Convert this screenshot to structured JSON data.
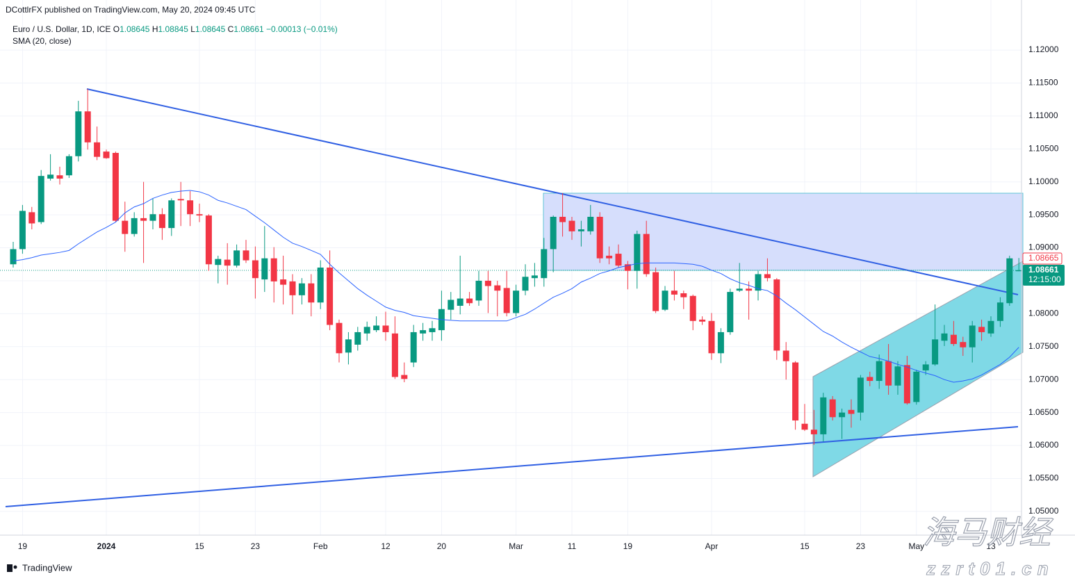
{
  "header": {
    "publisher": "DCottlrFX published on TradingView.com, May 20, 2024 09:45 UTC"
  },
  "chart_data": {
    "type": "candlestick",
    "legend": {
      "symbol": "Euro / U.S. Dollar, 1D, ICE",
      "ohlc": [
        {
          "key": "O",
          "value": "1.08645"
        },
        {
          "key": "H",
          "value": "1.08845"
        },
        {
          "key": "L",
          "value": "1.08645"
        },
        {
          "key": "C",
          "value": "1.08661"
        }
      ],
      "change": "−0.00013 (−0.01%)"
    },
    "categories": [
      null,
      "19",
      null,
      null,
      null,
      null,
      null,
      null,
      null,
      null,
      "2024",
      null,
      null,
      null,
      null,
      null,
      null,
      null,
      null,
      null,
      "15",
      null,
      null,
      null,
      null,
      null,
      "23",
      null,
      null,
      null,
      null,
      null,
      null,
      "Feb",
      null,
      null,
      null,
      null,
      null,
      null,
      "12",
      null,
      null,
      null,
      null,
      null,
      "20",
      null,
      null,
      null,
      null,
      null,
      null,
      null,
      "Mar",
      null,
      null,
      null,
      null,
      null,
      "11",
      null,
      null,
      null,
      null,
      null,
      "19",
      null,
      null,
      null,
      null,
      null,
      null,
      null,
      null,
      "Apr",
      null,
      null,
      null,
      null,
      null,
      null,
      null,
      null,
      null,
      "15",
      null,
      null,
      null,
      null,
      null,
      "23",
      null,
      null,
      null,
      null,
      null,
      "May",
      null,
      null,
      null,
      null,
      null,
      null,
      null,
      "13",
      null,
      null,
      null
    ],
    "open": [
      1.0875,
      1.0898,
      1.0954,
      1.0939,
      1.1005,
      1.101,
      1.101,
      1.1039,
      1.1107,
      1.106,
      1.1046,
      1.1044,
      1.0941,
      1.0921,
      1.0945,
      1.0941,
      1.0951,
      1.093,
      1.0974,
      1.0972,
      1.0951,
      1.0949,
      1.0874,
      1.0882,
      1.0873,
      1.0896,
      1.0881,
      1.0852,
      1.0884,
      1.0852,
      1.0849,
      1.0828,
      1.0846,
      1.0817,
      1.087,
      1.0786,
      1.0741,
      1.0753,
      1.077,
      1.0775,
      1.0782,
      1.077,
      1.0707,
      1.0726,
      1.077,
      1.0772,
      1.0775,
      1.0806,
      1.0812,
      1.0823,
      1.082,
      1.085,
      1.0843,
      1.0839,
      1.0801,
      1.0835,
      1.0854,
      1.0854,
      1.0898,
      1.0947,
      1.0941,
      1.0925,
      1.0925,
      1.0947,
      1.0888,
      1.0891,
      1.0875,
      1.0865,
      1.0921,
      1.0863,
      1.0806,
      1.0835,
      1.0831,
      1.0827,
      1.0791,
      1.0789,
      1.074,
      1.0772,
      1.0835,
      1.0838,
      1.0835,
      1.086,
      1.0852,
      1.0744,
      1.0726,
      1.0633,
      1.0624,
      1.0617,
      1.067,
      1.0643,
      1.0654,
      1.065,
      1.0704,
      1.0698,
      1.0728,
      1.0691,
      1.0722,
      1.0666,
      1.0714,
      1.0723,
      1.0759,
      1.0768,
      1.0757,
      1.0749,
      1.078,
      1.077,
      1.0789,
      1.0816,
      1.08645
    ],
    "high": [
      1.0909,
      1.0965,
      1.0962,
      1.1018,
      1.1042,
      1.1023,
      1.1042,
      1.1123,
      1.1141,
      1.1084,
      1.1049,
      1.1046,
      1.097,
      1.0954,
      1.1,
      1.0975,
      1.096,
      1.0975,
      1.1,
      1.0986,
      1.0967,
      1.0951,
      1.0888,
      1.0907,
      1.0905,
      1.0912,
      1.0902,
      1.0933,
      1.0901,
      1.0888,
      1.086,
      1.0854,
      1.086,
      1.0881,
      1.0896,
      1.0791,
      1.0772,
      1.078,
      1.0788,
      1.0796,
      1.0803,
      1.0796,
      1.0726,
      1.0783,
      1.0786,
      1.0789,
      1.0835,
      1.0833,
      1.0888,
      1.0833,
      1.0865,
      1.0865,
      1.085,
      1.0865,
      1.0844,
      1.0875,
      1.0877,
      1.0915,
      1.0949,
      1.0983,
      1.0947,
      1.0941,
      1.0965,
      1.0954,
      1.0902,
      1.0905,
      1.088,
      1.0926,
      1.0941,
      1.087,
      1.0842,
      1.0865,
      1.0835,
      1.0829,
      1.0796,
      1.0801,
      1.0778,
      1.0838,
      1.0877,
      1.0849,
      1.0865,
      1.0884,
      1.0854,
      1.0757,
      1.0728,
      1.0663,
      1.0654,
      1.068,
      1.0675,
      1.0656,
      1.067,
      1.0707,
      1.0712,
      1.0738,
      1.0754,
      1.0728,
      1.0736,
      1.0715,
      1.0728,
      1.0814,
      1.0783,
      1.0789,
      1.0765,
      1.0789,
      1.0791,
      1.0796,
      1.0825,
      1.0888,
      1.08845
    ],
    "low": [
      1.087,
      1.0891,
      1.0928,
      1.0936,
      1.1002,
      1.0996,
      1.1006,
      1.1031,
      1.1049,
      1.1033,
      1.1035,
      1.0939,
      1.0894,
      1.0917,
      1.0877,
      1.0928,
      1.0912,
      1.0918,
      1.0933,
      1.0933,
      1.0939,
      1.0865,
      1.0846,
      1.0844,
      1.087,
      1.0877,
      1.0823,
      1.0833,
      1.0817,
      1.0814,
      1.0799,
      1.0814,
      1.0796,
      1.0807,
      1.0775,
      1.0726,
      1.0723,
      1.0744,
      1.0759,
      1.0772,
      1.0759,
      1.0701,
      1.0696,
      1.0719,
      1.0759,
      1.0759,
      1.0759,
      1.0791,
      1.0799,
      1.0812,
      1.0812,
      1.0801,
      1.0796,
      1.0796,
      1.0796,
      1.0828,
      1.0841,
      1.0841,
      1.0863,
      1.0917,
      1.0912,
      1.0902,
      1.092,
      1.0877,
      1.0875,
      1.087,
      1.0837,
      1.0838,
      1.0856,
      1.0801,
      1.0804,
      1.082,
      1.0807,
      1.0775,
      1.0783,
      1.073,
      1.0725,
      1.0768,
      1.0833,
      1.0791,
      1.082,
      1.0849,
      1.073,
      1.07,
      1.0624,
      1.0622,
      1.0601,
      1.0606,
      1.0638,
      1.061,
      1.0627,
      1.0638,
      1.069,
      1.0686,
      1.0677,
      1.0677,
      1.0662,
      1.0662,
      1.0707,
      1.0721,
      1.0751,
      1.0751,
      1.0736,
      1.0726,
      1.0759,
      1.0765,
      1.078,
      1.0812,
      1.08645
    ],
    "close": [
      1.0898,
      1.0956,
      1.0937,
      1.1009,
      1.1011,
      1.1005,
      1.1039,
      1.1107,
      1.106,
      1.1038,
      1.1036,
      1.0941,
      1.0921,
      1.0945,
      1.0941,
      1.0951,
      1.093,
      1.0972,
      1.0972,
      1.0951,
      1.0949,
      1.0875,
      1.0883,
      1.0873,
      1.0896,
      1.0881,
      1.0854,
      1.0884,
      1.0849,
      1.0844,
      1.0828,
      1.0846,
      1.0817,
      1.087,
      1.0783,
      1.074,
      1.0761,
      1.0772,
      1.078,
      1.0782,
      1.0772,
      1.0704,
      1.0701,
      1.0772,
      1.0775,
      1.0778,
      1.0807,
      1.0821,
      1.0823,
      1.0816,
      1.085,
      1.0842,
      1.0835,
      1.0801,
      1.0835,
      1.0856,
      1.0858,
      1.0898,
      1.0947,
      1.0939,
      1.0925,
      1.0928,
      1.0947,
      1.0884,
      1.0884,
      1.0873,
      1.0865,
      1.0921,
      1.086,
      1.0804,
      1.0835,
      1.0829,
      1.0825,
      1.0789,
      1.0788,
      1.074,
      1.0772,
      1.0833,
      1.0838,
      1.0835,
      1.086,
      1.0854,
      1.0744,
      1.0728,
      1.0638,
      1.0624,
      1.0617,
      1.0673,
      1.0643,
      1.065,
      1.0648,
      1.0703,
      1.0698,
      1.0728,
      1.0691,
      1.072,
      1.0664,
      1.0712,
      1.0723,
      1.0761,
      1.077,
      1.0754,
      1.0749,
      1.0782,
      1.0772,
      1.0789,
      1.0817,
      1.0884,
      1.08661
    ],
    "up_color": "#089981",
    "down_color": "#f23645",
    "series": [
      {
        "name": "SMA (20, close)",
        "color": "#2962ff",
        "values": [
          1.088,
          1.0882,
          1.0885,
          1.0889,
          1.0891,
          1.0893,
          1.0896,
          1.0906,
          1.0915,
          1.0924,
          1.0931,
          1.0939,
          1.0953,
          1.0962,
          1.0967,
          1.0975,
          1.098,
          1.0984,
          1.0986,
          1.0987,
          1.0985,
          1.098,
          1.0972,
          1.0968,
          1.0963,
          1.0958,
          1.0948,
          1.0938,
          1.0927,
          1.0916,
          1.0907,
          1.0902,
          1.0896,
          1.089,
          1.0875,
          1.0862,
          1.085,
          1.0838,
          1.0828,
          1.0819,
          1.081,
          1.0805,
          1.0802,
          1.0797,
          1.0795,
          1.0793,
          1.0791,
          1.079,
          1.0789,
          1.0789,
          1.0789,
          1.0789,
          1.0789,
          1.0789,
          1.0794,
          1.0799,
          1.0807,
          1.0816,
          1.0825,
          1.0831,
          1.0838,
          1.0848,
          1.0854,
          1.0861,
          1.0865,
          1.087,
          1.0873,
          1.0876,
          1.0877,
          1.0877,
          1.0877,
          1.0877,
          1.0876,
          1.0875,
          1.0872,
          1.0866,
          1.0861,
          1.0853,
          1.0847,
          1.0843,
          1.0838,
          1.0835,
          1.0827,
          1.0816,
          1.0806,
          1.0795,
          1.0784,
          1.0773,
          1.0766,
          1.0757,
          1.0749,
          1.0742,
          1.0735,
          1.0732,
          1.0728,
          1.0723,
          1.0719,
          1.0714,
          1.071,
          1.0706,
          1.07,
          1.0696,
          1.0698,
          1.0701,
          1.0707,
          1.0715,
          1.0723,
          1.0734,
          1.0749
        ]
      }
    ],
    "ylim": [
      1.0464,
      1.1276
    ],
    "yticks": [
      {
        "value": 1.05,
        "label": "1.05000"
      },
      {
        "value": 1.055,
        "label": "1.05500"
      },
      {
        "value": 1.06,
        "label": "1.06000"
      },
      {
        "value": 1.065,
        "label": "1.06500"
      },
      {
        "value": 1.07,
        "label": "1.07000"
      },
      {
        "value": 1.075,
        "label": "1.07500"
      },
      {
        "value": 1.08,
        "label": "1.08000"
      },
      {
        "value": 1.085,
        "label": "1.08500"
      },
      {
        "value": 1.09,
        "label": "1.09000"
      },
      {
        "value": 1.095,
        "label": "1.09500"
      },
      {
        "value": 1.1,
        "label": "1.10000"
      },
      {
        "value": 1.105,
        "label": "1.10500"
      },
      {
        "value": 1.11,
        "label": "1.11000"
      },
      {
        "value": 1.115,
        "label": "1.11500"
      },
      {
        "value": 1.12,
        "label": "1.12000"
      }
    ],
    "grid": true,
    "price_tags": {
      "marker": "1.08665",
      "last": "1.08661",
      "countdown": "12:15:00"
    }
  },
  "footer": {
    "brand": "TradingView"
  },
  "watermark": {
    "name": "海马财经",
    "site": "zzrt01.cn"
  }
}
